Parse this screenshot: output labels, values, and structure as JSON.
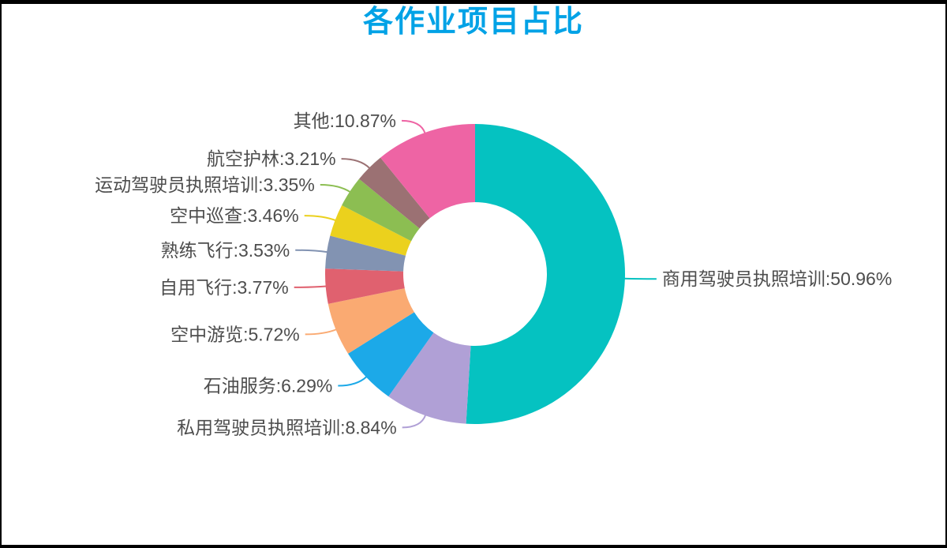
{
  "page": {
    "background_color": "#ffffff",
    "frame_color": "#000000"
  },
  "chart_data": {
    "type": "pie",
    "subtype": "donut",
    "title": "各作业项目占比",
    "title_color": "#00A2E6",
    "label_format": "{name}:{value}%",
    "legend_position": "none",
    "grid": false,
    "inner_radius_ratio": 0.48,
    "start_angle": "top",
    "direction": "clockwise",
    "series": [
      {
        "name": "商用驾驶员执照培训",
        "value": 50.96,
        "color": "#05C2C1"
      },
      {
        "name": "私用驾驶员执照培训",
        "value": 8.84,
        "color": "#B0A0D6"
      },
      {
        "name": "石油服务",
        "value": 6.29,
        "color": "#1CA9E8"
      },
      {
        "name": "空中游览",
        "value": 5.72,
        "color": "#FAAA72"
      },
      {
        "name": "自用飞行",
        "value": 3.77,
        "color": "#E0616F"
      },
      {
        "name": "熟练飞行",
        "value": 3.53,
        "color": "#8293B2"
      },
      {
        "name": "空中巡查",
        "value": 3.46,
        "color": "#EBD11D"
      },
      {
        "name": "运动驾驶员执照培训",
        "value": 3.35,
        "color": "#8CBE52"
      },
      {
        "name": "航空护林",
        "value": 3.21,
        "color": "#9B7173"
      },
      {
        "name": "其他",
        "value": 10.87,
        "color": "#EE64A4"
      }
    ],
    "label_text_color": "#4d4d4d"
  }
}
